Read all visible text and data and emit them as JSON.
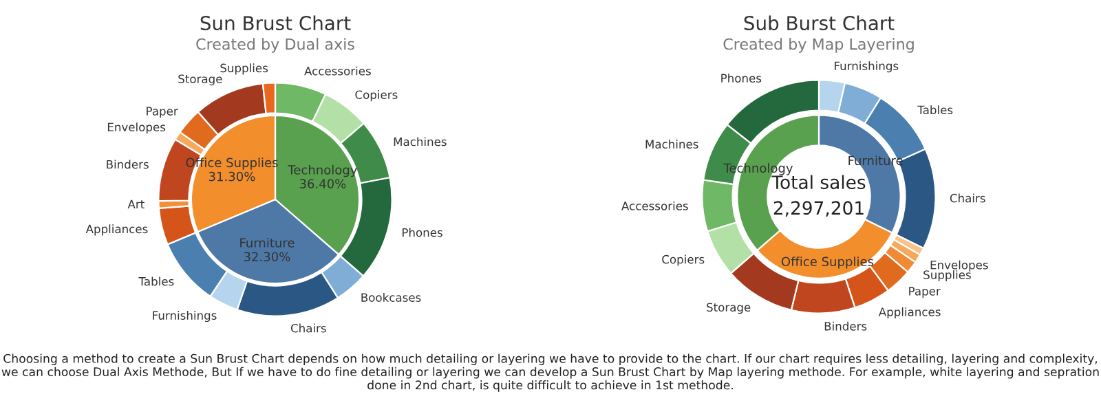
{
  "chart_data": [
    {
      "type": "donut",
      "title": "Sun Brust Chart",
      "subtitle": "Created by Dual axis",
      "series": [
        {
          "type": "pie",
          "values": [
            36.4,
            32.3,
            31.3
          ],
          "value_labels": [
            "Technology\n36.40%",
            "Furniture\n32.30%",
            "Office Supplies\n31.30%"
          ],
          "colors": [
            "#59a14f",
            "#4e79a7",
            "#f28e2b"
          ]
        },
        {
          "values": [
            7.1,
            6.6,
            8.3,
            14.4,
            4.6,
            14.3,
            4.1,
            9.3,
            5.1,
            1.0,
            8.8,
            1.2,
            3.7,
            9.8,
            1.7
          ],
          "value_labels": [
            "Accessories",
            "Copiers",
            "Machines",
            "Phones",
            "Bookcases",
            "Chairs",
            "Furnishings",
            "Tables",
            "Appliances",
            "Art",
            "Binders",
            "Envelopes",
            "Paper",
            "Storage",
            "Supplies"
          ],
          "colors": [
            "#6fb865",
            "#b3e0a6",
            "#3f8c4a",
            "#24693d",
            "#7fadd6",
            "#2a5783",
            "#b5d5ee",
            "#4a7fb0",
            "#d4541a",
            "#f0913a",
            "#c0461f",
            "#f7a85a",
            "#e06b1e",
            "#a33a1f",
            "#e8681f"
          ]
        }
      ],
      "annotations": [
        "Choosing a method to create a Sun Brust Chart depends on how much detailing or layering we have to provide to the chart. If our chart requires less detailing, layering and complexity, we can choose Dual Axis Methode, But If we have to do fine detailing or layering we can develop a Sun Brust Chart by Map layering methode. For example, white layering and sepration done in 2nd chart, is quite difficult to achieve in 1st methode."
      ]
    },
    {
      "type": "donut",
      "title": "Sub Burst Chart",
      "subtitle": "Created by Map Layering",
      "series": [
        {
          "values": [
            32.3,
            31.3,
            36.4
          ],
          "value_labels": [
            "Furniture",
            "Office Supplies",
            "Technology"
          ],
          "colors": [
            "#4e79a7",
            "#f28e2b",
            "#59a14f"
          ]
        },
        {
          "values": [
            3.6,
            5.3,
            9.4,
            14.0,
            1.0,
            1.2,
            1.7,
            3.7,
            5.1,
            8.8,
            9.8,
            6.6,
            7.1,
            8.3,
            14.4
          ],
          "value_labels": [
            "Furnishings",
            null,
            "Tables",
            "Chairs",
            null,
            "Envelopes",
            "Supplies",
            "Paper",
            "Appliances",
            "Binders",
            "Storage",
            "Copiers",
            "Accessories",
            "Machines",
            "Phones"
          ],
          "colors": [
            "#b5d5ee",
            "#7fadd6",
            "#4a7fb0",
            "#2a5783",
            "#f9c28a",
            "#f7a85a",
            "#ef8a35",
            "#e06b1e",
            "#d4541a",
            "#c0461f",
            "#a33a1f",
            "#b3e0a6",
            "#6fb865",
            "#3f8c4a",
            "#24693d"
          ]
        }
      ],
      "annotations": [
        "Total sales",
        "2,297,201"
      ]
    }
  ]
}
